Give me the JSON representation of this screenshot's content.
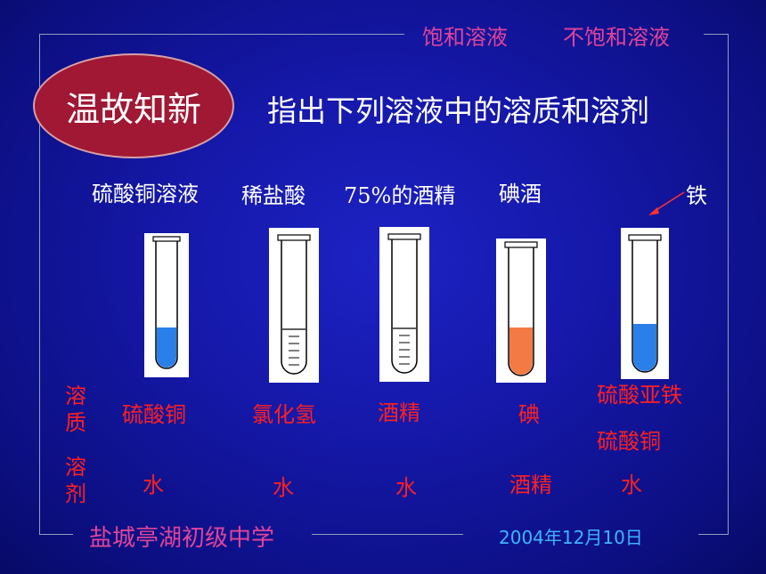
{
  "header": {
    "links": [
      "饱和溶液",
      "不饱和溶液"
    ]
  },
  "badge": {
    "label": "温故知新"
  },
  "instruction": "指出下列溶液中的溶质和溶剂",
  "solutions": [
    {
      "name": "硫酸铜溶液",
      "solute": "硫酸铜",
      "solvent": "水",
      "fill_color": "#2a7fe8",
      "fill_level": 0.33,
      "graduated": false
    },
    {
      "name": "稀盐酸",
      "solute": "氯化氢",
      "solvent": "水",
      "fill_color": "#ffffff",
      "fill_level": 0.33,
      "graduated": true
    },
    {
      "name": "75%的酒精",
      "solute": "酒精",
      "solvent": "水",
      "fill_color": "#ffffff",
      "fill_level": 0.33,
      "graduated": true
    },
    {
      "name": "碘酒",
      "solute": "碘",
      "solvent": "酒精",
      "fill_color": "#f47a45",
      "fill_level": 0.38,
      "graduated": false
    },
    {
      "name": "",
      "solute_lines": [
        "硫酸亚铁",
        "硫酸铜"
      ],
      "solvent": "水",
      "fill_color": "#2a7fe8",
      "fill_level": 0.33,
      "graduated": false
    }
  ],
  "iron_label": "铁",
  "row_labels": {
    "solute": "溶质",
    "solvent": "溶剂"
  },
  "footer": {
    "school": "盐城亭湖初级中学",
    "date": "2004年12月10日"
  },
  "colors": {
    "background": "#1518a8",
    "accent_pink": "#e0449a",
    "answer_red": "#ff2020",
    "date_blue": "#3fb4ff",
    "badge_red": "#a01834"
  }
}
